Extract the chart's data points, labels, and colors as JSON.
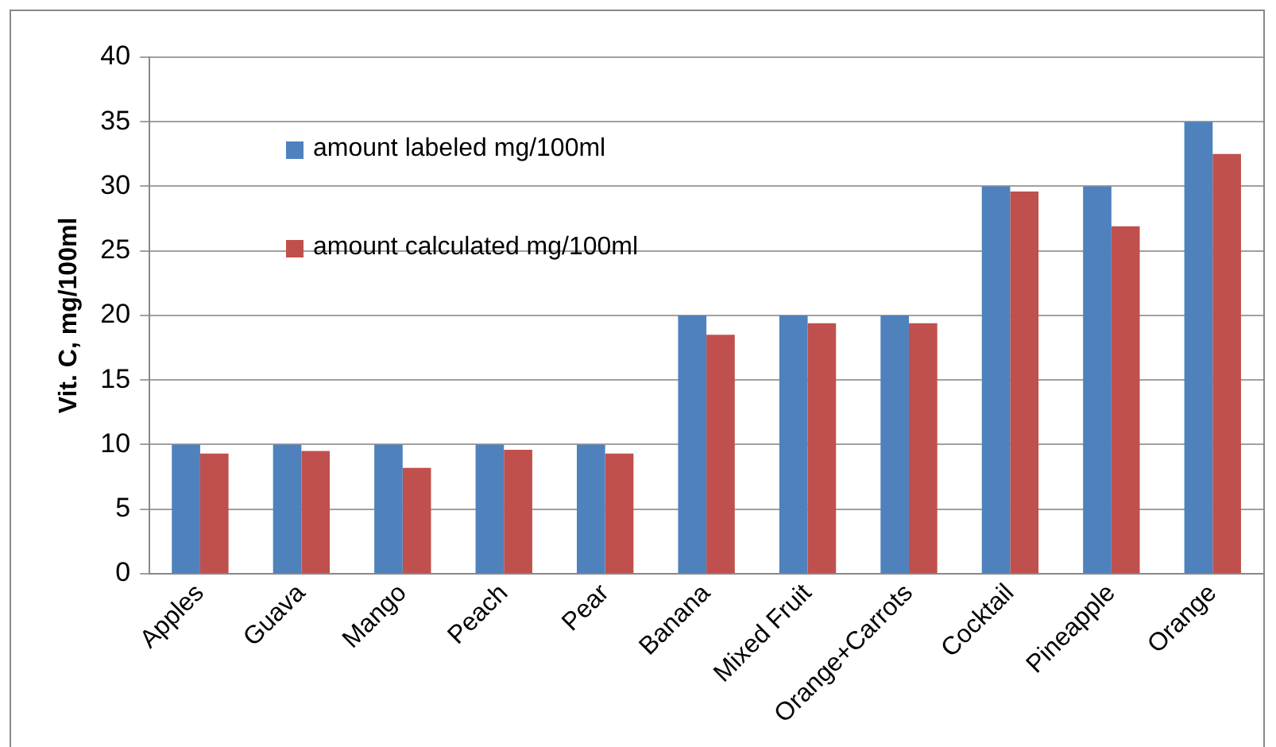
{
  "chart_data": {
    "type": "bar",
    "ylabel": "Vit. C, mg/100ml",
    "categories": [
      "Apples",
      "Guava",
      "Mango",
      "Peach",
      "Pear",
      "Banana",
      "Mixed Fruit",
      "Orange+Carrots",
      "Cocktail",
      "Pineapple",
      "Orange"
    ],
    "series": [
      {
        "name": "amount labeled mg/100ml",
        "color": "#4f81bd",
        "values": [
          10,
          10,
          10,
          10,
          10,
          20,
          20,
          20,
          30,
          30,
          35
        ]
      },
      {
        "name": "amount calculated mg/100ml",
        "color": "#c0504d",
        "values": [
          9.3,
          9.5,
          8.2,
          9.6,
          9.3,
          18.5,
          19.4,
          19.4,
          29.6,
          26.9,
          32.5
        ]
      }
    ],
    "ylim": [
      0,
      40
    ],
    "yticks": [
      0,
      5,
      10,
      15,
      20,
      25,
      30,
      35,
      40
    ],
    "grid": "y",
    "legend": "top left"
  }
}
